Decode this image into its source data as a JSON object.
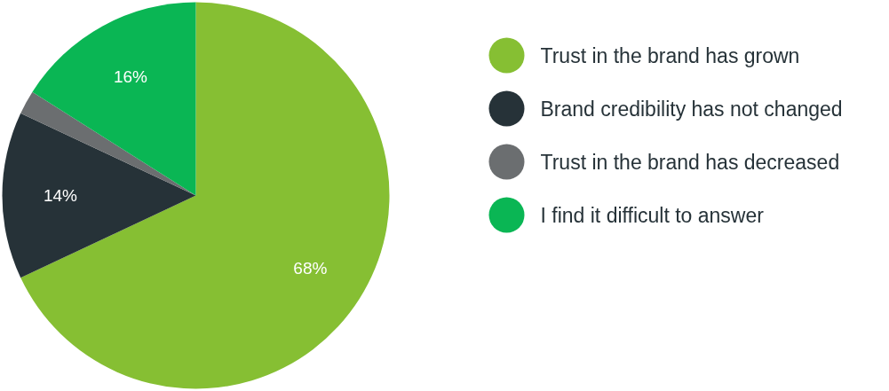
{
  "chart_data": {
    "type": "pie",
    "categories": [
      "Trust in the brand has grown",
      "Brand credibility has not changed",
      "Trust in the brand has decreased",
      "I find it difficult to answer"
    ],
    "values": [
      68,
      14,
      2,
      16
    ],
    "colors": [
      "#86bf33",
      "#263238",
      "#6b6e70",
      "#0ab654"
    ],
    "value_labels": [
      "68%",
      "14%",
      null,
      "16%"
    ],
    "legend": "right"
  }
}
